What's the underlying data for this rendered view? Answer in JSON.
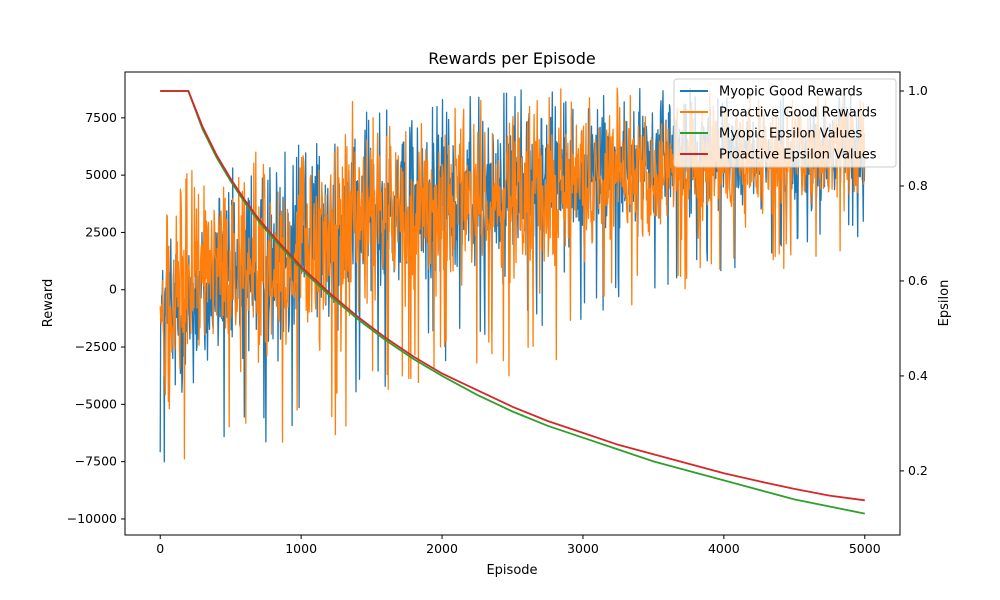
{
  "chart_data": {
    "type": "line",
    "title": "Rewards per Episode",
    "xlabel": "Episode",
    "ylabel": "Reward",
    "ylabel_right": "Epsilon",
    "xlim": [
      -250,
      5250
    ],
    "ylim": [
      -10700,
      9500
    ],
    "ylim_right": [
      0.065,
      1.04
    ],
    "x_ticks": [
      0,
      1000,
      2000,
      3000,
      4000,
      5000
    ],
    "y_ticks": [
      -10000,
      -7500,
      -5000,
      -2500,
      0,
      2500,
      5000,
      7500
    ],
    "y_ticks_right": [
      0.2,
      0.4,
      0.6,
      0.8,
      1.0
    ],
    "grid": false,
    "legend_position": "top-right",
    "legend": [
      {
        "label": "Myopic Good Rewards",
        "color": "#1f77b4"
      },
      {
        "label": "Proactive Good Rewards",
        "color": "#ff7f0e"
      },
      {
        "label": "Myopic Epsilon Values",
        "color": "#2ca02c"
      },
      {
        "label": "Proactive Epsilon Values",
        "color": "#d62728"
      }
    ],
    "series": [
      {
        "name": "Myopic Good Rewards",
        "axis": "left",
        "color": "#1f77b4",
        "envelope": {
          "x": [
            0,
            250,
            500,
            750,
            1000,
            1250,
            1500,
            1750,
            2000,
            2250,
            2500,
            2750,
            3000,
            3250,
            3500,
            3750,
            4000,
            4250,
            4500,
            4750,
            5000
          ],
          "upper": [
            3200,
            4200,
            5500,
            5800,
            6400,
            7600,
            8000,
            8200,
            8400,
            8600,
            8800,
            8700,
            8900,
            9000,
            8900,
            8800,
            8700,
            8500,
            8600,
            8800,
            9000
          ],
          "lower": [
            -8000,
            -8000,
            -7800,
            -7000,
            -6000,
            -5500,
            -4800,
            -3500,
            -3200,
            -3000,
            -2500,
            -2000,
            -1500,
            -800,
            0,
            500,
            700,
            1000,
            1200,
            1500,
            2000
          ]
        }
      },
      {
        "name": "Proactive Good Rewards",
        "axis": "left",
        "color": "#ff7f0e",
        "envelope": {
          "x": [
            0,
            250,
            500,
            750,
            1000,
            1250,
            1500,
            1750,
            2000,
            2250,
            2500,
            2750,
            3000,
            3250,
            3500,
            3750,
            4000,
            4250,
            4500,
            4750,
            5000
          ],
          "upper": [
            3000,
            6200,
            6000,
            6000,
            6200,
            8500,
            8200,
            8300,
            8500,
            8400,
            8300,
            8800,
            8700,
            8800,
            8600,
            8600,
            8800,
            8500,
            8600,
            8700,
            8800
          ],
          "lower": [
            -9800,
            -7800,
            -7500,
            -8000,
            -6000,
            -6500,
            -5000,
            -4500,
            -4000,
            -3500,
            -3800,
            -4000,
            -2000,
            -1000,
            -500,
            0,
            500,
            700,
            1000,
            1500,
            1800
          ]
        }
      },
      {
        "name": "Myopic Epsilon Values",
        "axis": "right",
        "color": "#2ca02c",
        "x": [
          0,
          200,
          300,
          400,
          500,
          600,
          700,
          800,
          1000,
          1200,
          1400,
          1600,
          1800,
          2000,
          2250,
          2500,
          2750,
          3000,
          3250,
          3500,
          3750,
          4000,
          4250,
          4500,
          4750,
          5000
        ],
        "y": [
          1.0,
          1.0,
          0.92,
          0.86,
          0.81,
          0.765,
          0.725,
          0.69,
          0.625,
          0.57,
          0.52,
          0.475,
          0.435,
          0.4,
          0.36,
          0.325,
          0.295,
          0.27,
          0.245,
          0.22,
          0.2,
          0.18,
          0.16,
          0.14,
          0.125,
          0.11
        ]
      },
      {
        "name": "Proactive Epsilon Values",
        "axis": "right",
        "color": "#d62728",
        "x": [
          0,
          200,
          300,
          400,
          500,
          600,
          700,
          800,
          1000,
          1200,
          1400,
          1600,
          1800,
          2000,
          2250,
          2500,
          2750,
          3000,
          3250,
          3500,
          3750,
          4000,
          4250,
          4500,
          4750,
          5000
        ],
        "y": [
          1.0,
          1.0,
          0.925,
          0.865,
          0.815,
          0.77,
          0.73,
          0.695,
          0.63,
          0.575,
          0.525,
          0.48,
          0.44,
          0.405,
          0.37,
          0.335,
          0.305,
          0.28,
          0.255,
          0.235,
          0.215,
          0.195,
          0.178,
          0.162,
          0.148,
          0.138
        ]
      }
    ]
  }
}
